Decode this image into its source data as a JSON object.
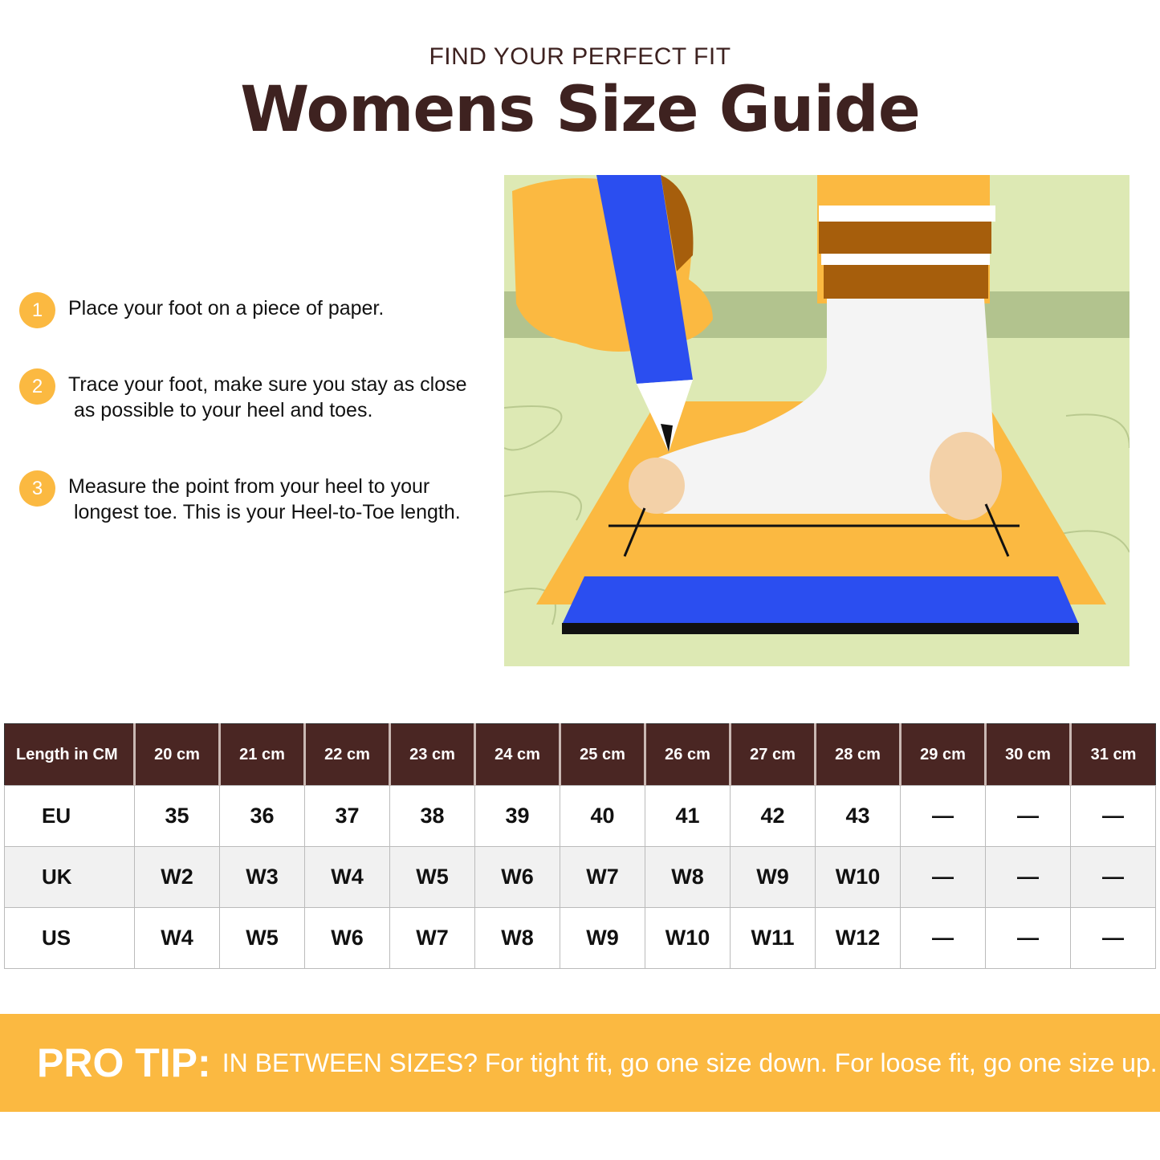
{
  "header": {
    "kicker": "FIND YOUR PERFECT FIT",
    "title": "Womens Size Guide"
  },
  "steps": [
    {
      "num": "1",
      "text": "Place your foot on a piece of paper."
    },
    {
      "num": "2",
      "text": "Trace your foot, make sure you stay as close\n as possible to your heel and toes."
    },
    {
      "num": "3",
      "text": "Measure the point from your heel to your\n longest toe. This is your Heel-to-Toe length."
    }
  ],
  "table": {
    "corner": "Length in CM",
    "columns": [
      "20 cm",
      "21 cm",
      "22 cm",
      "23 cm",
      "24 cm",
      "25 cm",
      "26 cm",
      "27 cm",
      "28 cm",
      "29 cm",
      "30 cm",
      "31 cm"
    ],
    "rows": [
      {
        "label": "EU",
        "values": [
          "35",
          "36",
          "37",
          "38",
          "39",
          "40",
          "41",
          "42",
          "43",
          "—",
          "—",
          "—"
        ]
      },
      {
        "label": "UK",
        "values": [
          "W2",
          "W3",
          "W4",
          "W5",
          "W6",
          "W7",
          "W8",
          "W9",
          "W10",
          "—",
          "—",
          "—"
        ]
      },
      {
        "label": "US",
        "values": [
          "W4",
          "W5",
          "W6",
          "W7",
          "W8",
          "W9",
          "W10",
          "W11",
          "W12",
          "—",
          "—",
          "—"
        ]
      }
    ]
  },
  "banner": {
    "label": "PRO TIP:",
    "text": "IN BETWEEN SIZES? For tight fit, go one size down. For loose fit, go one size up."
  },
  "colors": {
    "brown": "#4a2623",
    "yellow": "#fbb941",
    "blue": "#2b4ef0",
    "floor": "#dde9b4"
  }
}
